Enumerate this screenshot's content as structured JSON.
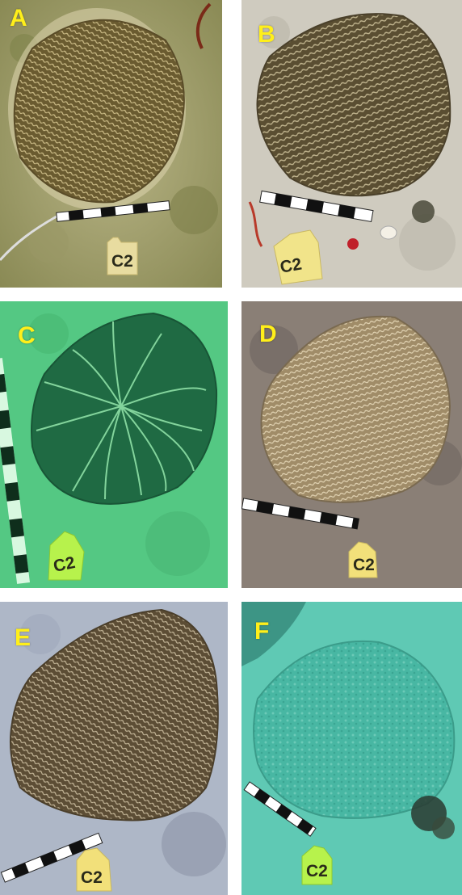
{
  "panels": [
    {
      "letter": "A",
      "tag": "C2"
    },
    {
      "letter": "B",
      "tag": "C2"
    },
    {
      "letter": "C",
      "tag": "C2"
    },
    {
      "letter": "D",
      "tag": "C2"
    },
    {
      "letter": "E",
      "tag": "C2"
    },
    {
      "letter": "F",
      "tag": "C2"
    }
  ]
}
